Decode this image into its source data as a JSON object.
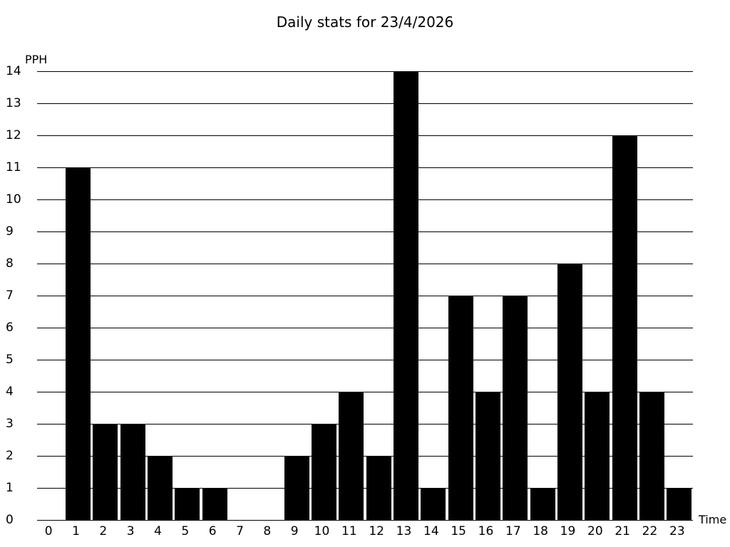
{
  "chart_data": {
    "type": "bar",
    "title": "Daily stats for 23/4/2026",
    "xlabel": "Time",
    "ylabel": "PPH",
    "categories": [
      "0",
      "1",
      "2",
      "3",
      "4",
      "5",
      "6",
      "7",
      "8",
      "9",
      "10",
      "11",
      "12",
      "13",
      "14",
      "15",
      "16",
      "17",
      "18",
      "19",
      "20",
      "21",
      "22",
      "23"
    ],
    "values": [
      0,
      11,
      3,
      3,
      2,
      1,
      1,
      0,
      0,
      2,
      3,
      4,
      2,
      14,
      1,
      7,
      4,
      7,
      1,
      8,
      4,
      12,
      4,
      1
    ],
    "ylim": [
      0,
      14
    ],
    "ytick_step": 1,
    "yticks": [
      0,
      1,
      2,
      3,
      4,
      5,
      6,
      7,
      8,
      9,
      10,
      11,
      12,
      13,
      14
    ],
    "grid": true,
    "legend": null,
    "bar_color": "#000000",
    "grid_color": "#000000",
    "background_color": "#ffffff",
    "text_color": "#000000"
  }
}
